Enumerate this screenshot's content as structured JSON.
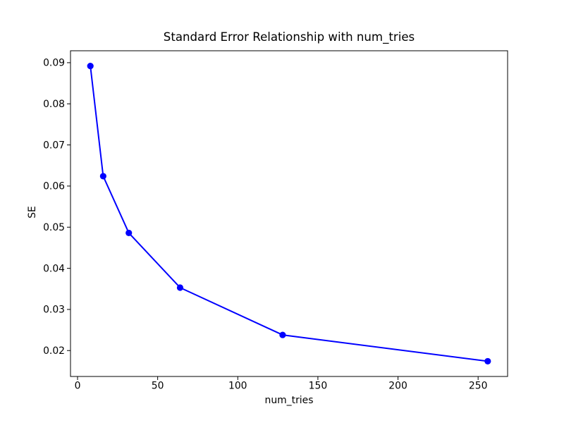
{
  "chart_data": {
    "type": "line",
    "title": "Standard Error Relationship with num_tries",
    "xlabel": "num_tries",
    "ylabel": "SE",
    "x": [
      8,
      16,
      32,
      64,
      128,
      256
    ],
    "y": [
      0.0892,
      0.0624,
      0.0486,
      0.0353,
      0.0238,
      0.0174
    ],
    "xticks": [
      0,
      50,
      100,
      150,
      200,
      250
    ],
    "yticks": [
      0.02,
      0.03,
      0.04,
      0.05,
      0.06,
      0.07,
      0.08,
      0.09
    ],
    "y_tick_decimals": 2,
    "xlim": [
      -4.4,
      268.4
    ],
    "ylim": [
      0.0137,
      0.0929
    ],
    "grid": false,
    "legend_position": "none",
    "line_color": "#0000ff",
    "marker": "o",
    "marker_color": "#0000ff",
    "axis_color": "#000000",
    "background_color": "#ffffff"
  }
}
